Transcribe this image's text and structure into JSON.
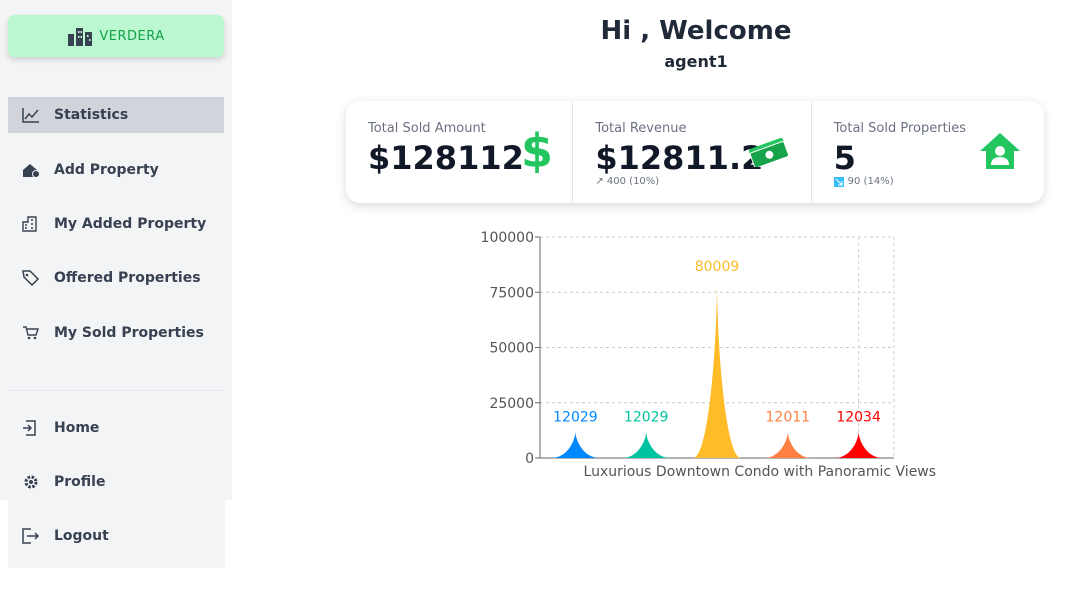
{
  "sidebar": {
    "brand": "VERDERA",
    "nav": [
      {
        "label": "Statistics",
        "active": true
      },
      {
        "label": "Add Property"
      },
      {
        "label": "My Added Property"
      },
      {
        "label": "Offered Properties"
      },
      {
        "label": "My Sold Properties"
      }
    ],
    "bottom_nav": [
      {
        "label": "Home"
      },
      {
        "label": "Profile"
      },
      {
        "label": "Logout"
      }
    ]
  },
  "header": {
    "title": "Hi , Welcome",
    "user": "agent1"
  },
  "stats": [
    {
      "label": "Total Sold Amount",
      "value": "$128112"
    },
    {
      "label": "Total Revenue",
      "value": "$12811.2",
      "change": "↗ 400 (10%)"
    },
    {
      "label": "Total Sold Properties",
      "value": "5",
      "change": "90 (14%)"
    }
  ],
  "chart_data": {
    "type": "triangle-bar",
    "categories": [
      null,
      null,
      null,
      "Luxurious Downtown Condo with Panoramic Views",
      null
    ],
    "values": [
      12029,
      12029,
      80009,
      12011,
      12034
    ],
    "colors": [
      "#0088FE",
      "#00C49F",
      "#FFBB28",
      "#FF8042",
      "#ff0000"
    ],
    "ylim": [
      0,
      100000
    ],
    "yticks": [
      0,
      25000,
      50000,
      75000,
      100000
    ],
    "grid": true
  }
}
